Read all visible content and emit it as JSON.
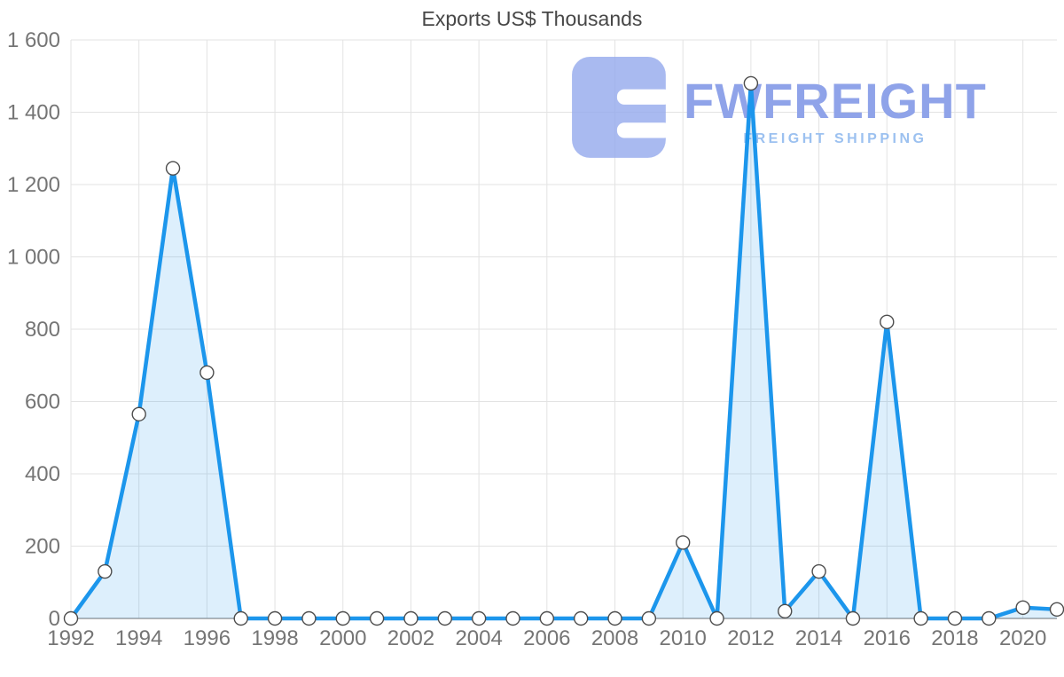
{
  "chart_data": {
    "type": "area",
    "title": "Exports US$ Thousands",
    "x": [
      1992,
      1993,
      1994,
      1995,
      1996,
      1997,
      1998,
      1999,
      2000,
      2001,
      2002,
      2003,
      2004,
      2005,
      2006,
      2007,
      2008,
      2009,
      2010,
      2011,
      2012,
      2013,
      2014,
      2015,
      2016,
      2017,
      2018,
      2019,
      2020,
      2021
    ],
    "values": [
      0,
      130,
      565,
      1245,
      680,
      0,
      0,
      0,
      0,
      0,
      0,
      0,
      0,
      0,
      0,
      0,
      0,
      0,
      210,
      0,
      1480,
      20,
      130,
      0,
      820,
      0,
      0,
      0,
      30,
      25
    ],
    "ylim": [
      0,
      1600
    ],
    "yticks": [
      0,
      200,
      400,
      600,
      800,
      1000,
      1200,
      1400,
      1600
    ],
    "ytick_labels": [
      "0",
      "200",
      "400",
      "600",
      "800",
      "1 000",
      "1 200",
      "1 400",
      "1 600"
    ],
    "xticks": [
      1992,
      1994,
      1996,
      1998,
      2000,
      2002,
      2004,
      2006,
      2008,
      2010,
      2012,
      2014,
      2016,
      2018,
      2020
    ],
    "xtick_labels": [
      "1992",
      "1994",
      "1996",
      "1998",
      "2000",
      "2002",
      "2004",
      "2006",
      "2008",
      "2010",
      "2012",
      "2014",
      "2016",
      "2018",
      "2020"
    ],
    "grid": true,
    "legend": "none",
    "line_color": "#1c96ec",
    "area_color": "rgba(28,150,236,0.15)",
    "marker_fill": "#ffffff",
    "marker_stroke": "#4d4d4d",
    "grid_color": "#e3e3e3",
    "axis_color": "#9e9e9e",
    "tick_label_color": "#757575"
  },
  "watermark": {
    "brand": "FWFREIGHT",
    "tagline": "FREIGHT SHIPPING",
    "logo": "fwfreight-logo",
    "brand_color": "#8fa3e9",
    "tagline_color": "#9cc1f0",
    "logo_color": "#93a9ec"
  }
}
